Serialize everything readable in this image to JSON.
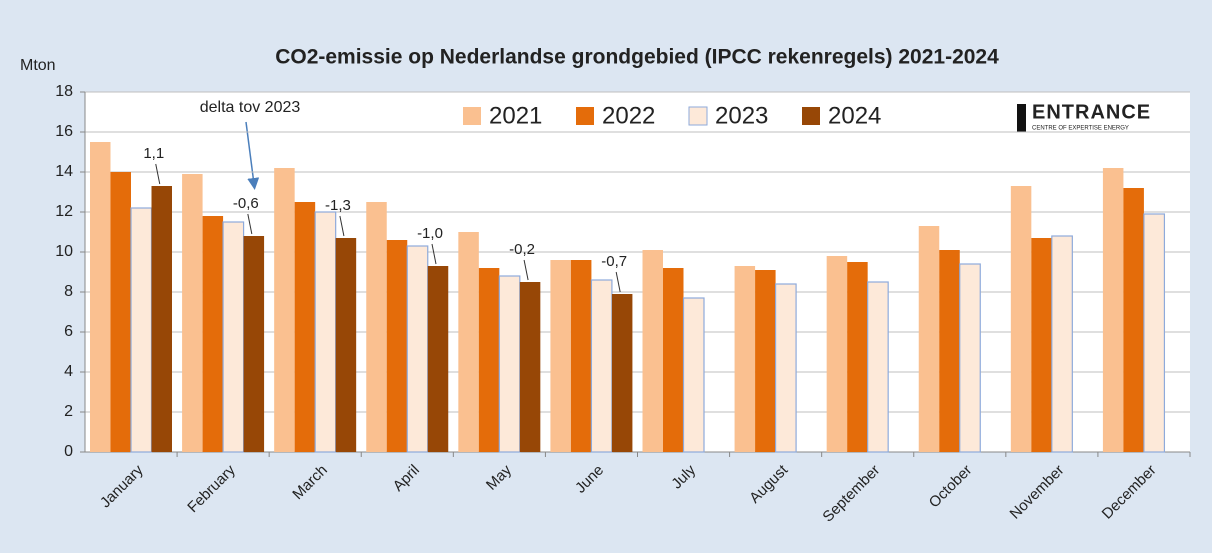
{
  "chart_data": {
    "type": "bar",
    "title": "CO2-emissie op Nederlandse grondgebied (IPCC rekenregels) 2021-2024",
    "y_label": "Mton",
    "annotation": "delta tov 2023",
    "logo": {
      "name": "ENTRANCE",
      "tagline": "CENTRE OF EXPERTISE ENERGY"
    },
    "categories": [
      "January",
      "February",
      "March",
      "April",
      "May",
      "June",
      "July",
      "August",
      "September",
      "October",
      "November",
      "December"
    ],
    "series": [
      {
        "name": "2021",
        "color": "#fac090",
        "values": [
          15.5,
          13.9,
          14.2,
          12.5,
          11.0,
          9.6,
          10.1,
          9.3,
          9.8,
          11.3,
          13.3,
          14.2
        ]
      },
      {
        "name": "2022",
        "color": "#e46c0a",
        "values": [
          14.0,
          11.8,
          12.5,
          10.6,
          9.2,
          9.6,
          9.2,
          9.1,
          9.5,
          10.1,
          10.7,
          13.2
        ]
      },
      {
        "name": "2023",
        "color": "#fde9d9",
        "values": [
          12.2,
          11.5,
          12.0,
          10.3,
          8.8,
          8.6,
          7.7,
          8.4,
          8.5,
          9.4,
          10.8,
          11.9
        ]
      },
      {
        "name": "2024",
        "color": "#974706",
        "values": [
          13.3,
          10.8,
          10.7,
          9.3,
          8.5,
          7.9,
          null,
          null,
          null,
          null,
          null,
          null
        ]
      }
    ],
    "delta_labels": [
      "1,1",
      "-0,6",
      "-1,3",
      "-1,0",
      "-0,2",
      "-0,7",
      null,
      null,
      null,
      null,
      null,
      null
    ],
    "ylim": [
      0,
      18
    ],
    "yticks": [
      0,
      2,
      4,
      6,
      8,
      10,
      12,
      14,
      16,
      18
    ],
    "grid": true,
    "legend": "top"
  }
}
